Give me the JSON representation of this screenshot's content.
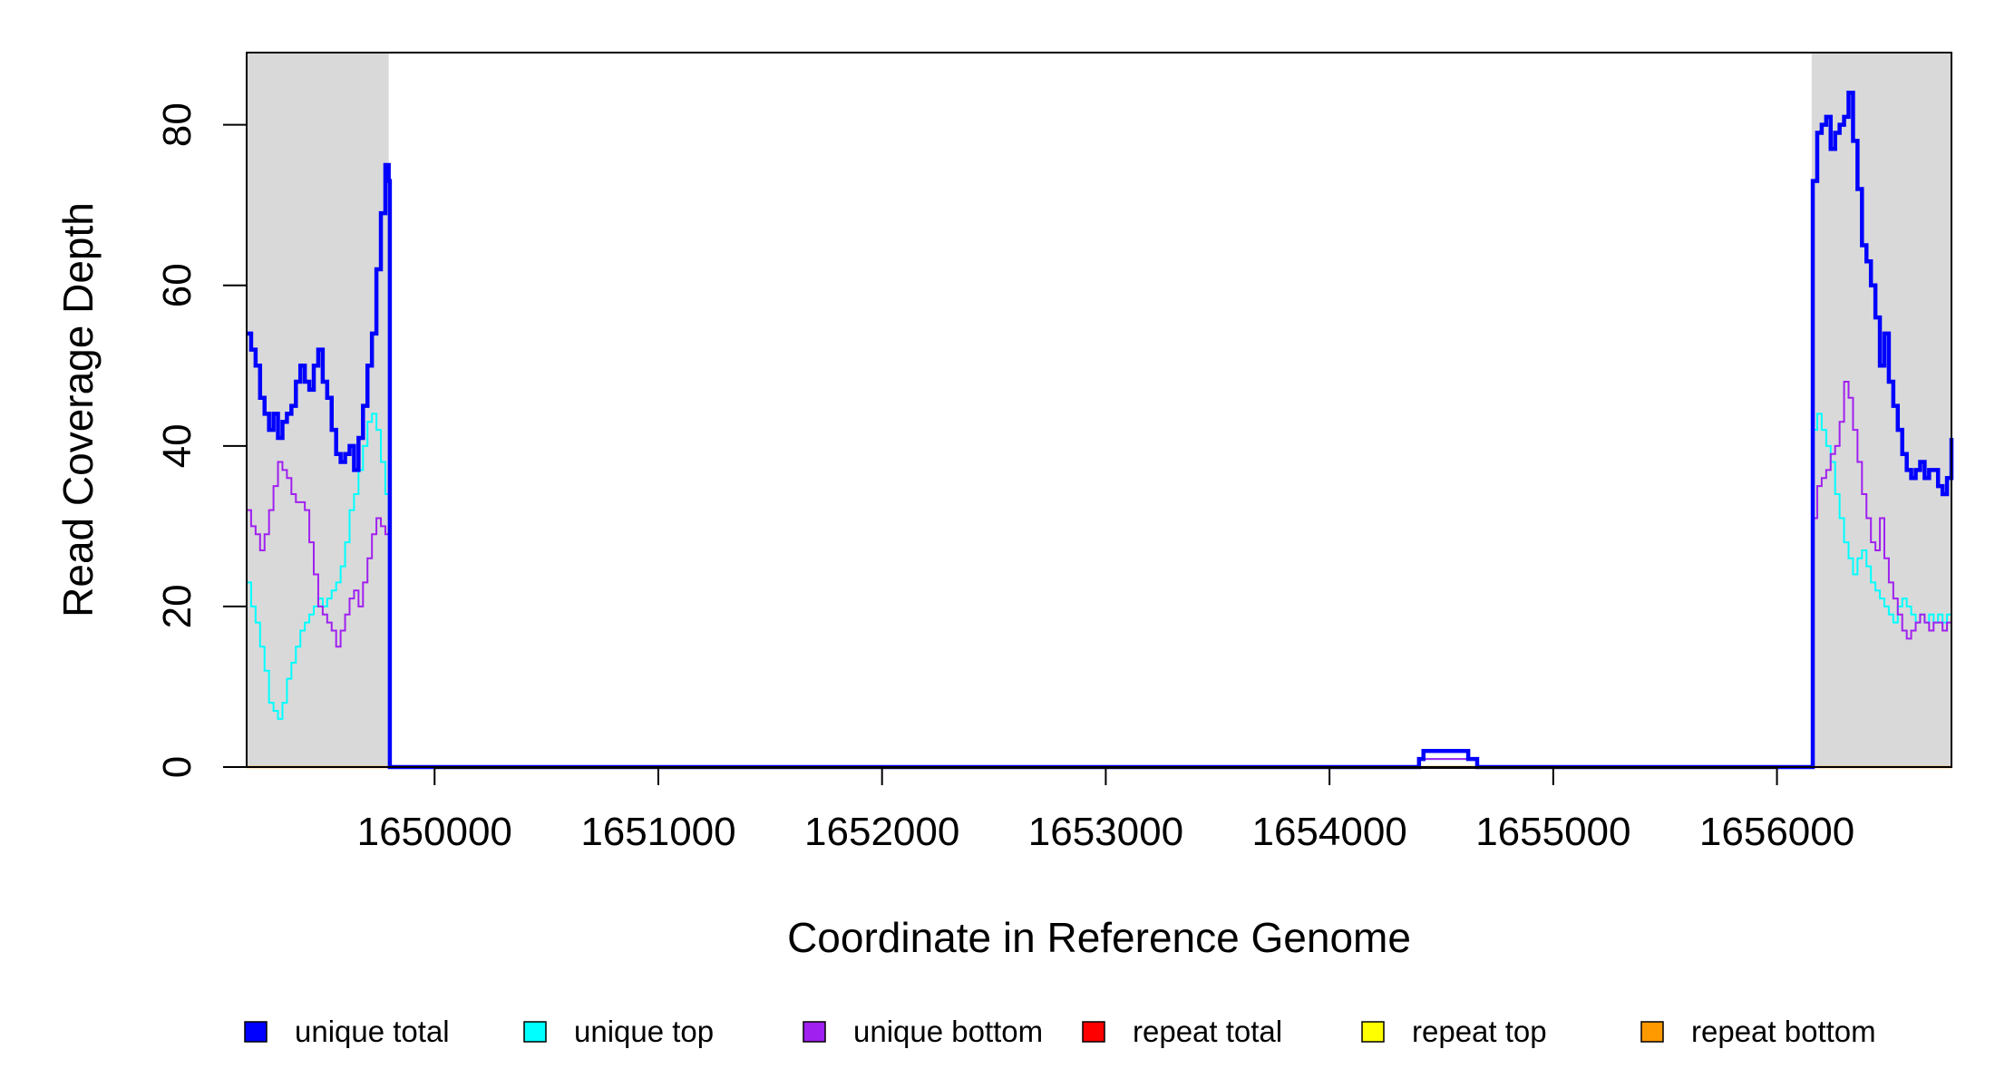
{
  "chart_data": {
    "type": "line",
    "xlabel": "Coordinate in Reference Genome",
    "ylabel": "Read Coverage Depth",
    "xlim": [
      1649160,
      1656780
    ],
    "ylim": [
      0,
      89
    ],
    "x_ticks": [
      1650000,
      1651000,
      1652000,
      1653000,
      1654000,
      1655000,
      1656000
    ],
    "x_tick_labels": [
      "1650000",
      "1651000",
      "1652000",
      "1653000",
      "1654000",
      "1655000",
      "1656000"
    ],
    "y_ticks": [
      0,
      20,
      40,
      60,
      80
    ],
    "y_tick_labels": [
      "0",
      "20",
      "40",
      "60",
      "80"
    ],
    "shaded_regions": [
      {
        "x0": 1649160,
        "x1": 1649795,
        "color": "#d9d9d9"
      },
      {
        "x0": 1656155,
        "x1": 1656780,
        "color": "#d9d9d9"
      }
    ],
    "grid": false,
    "legend_position": "bottom",
    "series": [
      {
        "name": "unique total",
        "color": "#0000ff",
        "line_width": 4.5,
        "points": [
          [
            1649160,
            54
          ],
          [
            1649180,
            52
          ],
          [
            1649200,
            50
          ],
          [
            1649220,
            46
          ],
          [
            1649240,
            44
          ],
          [
            1649260,
            42
          ],
          [
            1649280,
            44
          ],
          [
            1649300,
            41
          ],
          [
            1649320,
            43
          ],
          [
            1649340,
            44
          ],
          [
            1649360,
            45
          ],
          [
            1649380,
            48
          ],
          [
            1649400,
            50
          ],
          [
            1649420,
            48
          ],
          [
            1649440,
            47
          ],
          [
            1649460,
            50
          ],
          [
            1649480,
            52
          ],
          [
            1649500,
            48
          ],
          [
            1649520,
            46
          ],
          [
            1649540,
            42
          ],
          [
            1649560,
            39
          ],
          [
            1649580,
            38
          ],
          [
            1649600,
            39
          ],
          [
            1649620,
            40
          ],
          [
            1649640,
            37
          ],
          [
            1649660,
            41
          ],
          [
            1649680,
            45
          ],
          [
            1649700,
            50
          ],
          [
            1649720,
            54
          ],
          [
            1649740,
            62
          ],
          [
            1649760,
            69
          ],
          [
            1649780,
            75
          ],
          [
            1649795,
            73
          ],
          [
            1649800,
            0
          ],
          [
            1654380,
            0
          ],
          [
            1654400,
            1
          ],
          [
            1654420,
            2
          ],
          [
            1654620,
            1
          ],
          [
            1654660,
            0
          ],
          [
            1656150,
            0
          ],
          [
            1656160,
            73
          ],
          [
            1656180,
            79
          ],
          [
            1656200,
            80
          ],
          [
            1656220,
            81
          ],
          [
            1656240,
            77
          ],
          [
            1656260,
            79
          ],
          [
            1656280,
            80
          ],
          [
            1656300,
            81
          ],
          [
            1656320,
            84
          ],
          [
            1656340,
            78
          ],
          [
            1656360,
            72
          ],
          [
            1656380,
            65
          ],
          [
            1656400,
            63
          ],
          [
            1656420,
            60
          ],
          [
            1656440,
            56
          ],
          [
            1656460,
            50
          ],
          [
            1656480,
            54
          ],
          [
            1656500,
            48
          ],
          [
            1656520,
            45
          ],
          [
            1656540,
            42
          ],
          [
            1656560,
            39
          ],
          [
            1656580,
            37
          ],
          [
            1656600,
            36
          ],
          [
            1656620,
            37
          ],
          [
            1656640,
            38
          ],
          [
            1656660,
            36
          ],
          [
            1656680,
            37
          ],
          [
            1656700,
            37
          ],
          [
            1656720,
            35
          ],
          [
            1656740,
            34
          ],
          [
            1656760,
            36
          ],
          [
            1656780,
            41
          ]
        ]
      },
      {
        "name": "unique top",
        "color": "#00ffff",
        "line_width": 2,
        "points": [
          [
            1649160,
            23
          ],
          [
            1649180,
            20
          ],
          [
            1649200,
            18
          ],
          [
            1649220,
            15
          ],
          [
            1649240,
            12
          ],
          [
            1649260,
            8
          ],
          [
            1649280,
            7
          ],
          [
            1649300,
            6
          ],
          [
            1649320,
            8
          ],
          [
            1649340,
            11
          ],
          [
            1649360,
            13
          ],
          [
            1649380,
            15
          ],
          [
            1649400,
            17
          ],
          [
            1649420,
            18
          ],
          [
            1649440,
            19
          ],
          [
            1649460,
            20
          ],
          [
            1649480,
            21
          ],
          [
            1649500,
            20
          ],
          [
            1649520,
            21
          ],
          [
            1649540,
            22
          ],
          [
            1649560,
            23
          ],
          [
            1649580,
            25
          ],
          [
            1649600,
            28
          ],
          [
            1649620,
            32
          ],
          [
            1649640,
            34
          ],
          [
            1649660,
            37
          ],
          [
            1649680,
            40
          ],
          [
            1649700,
            43
          ],
          [
            1649720,
            44
          ],
          [
            1649740,
            42
          ],
          [
            1649760,
            38
          ],
          [
            1649780,
            34
          ],
          [
            1649795,
            31
          ],
          [
            1649800,
            0
          ],
          [
            1654380,
            0
          ],
          [
            1654400,
            1
          ],
          [
            1654620,
            1
          ],
          [
            1654660,
            0
          ],
          [
            1656150,
            0
          ],
          [
            1656160,
            42
          ],
          [
            1656180,
            44
          ],
          [
            1656200,
            42
          ],
          [
            1656220,
            40
          ],
          [
            1656240,
            38
          ],
          [
            1656260,
            34
          ],
          [
            1656280,
            31
          ],
          [
            1656300,
            28
          ],
          [
            1656320,
            26
          ],
          [
            1656340,
            24
          ],
          [
            1656360,
            26
          ],
          [
            1656380,
            27
          ],
          [
            1656400,
            25
          ],
          [
            1656420,
            23
          ],
          [
            1656440,
            22
          ],
          [
            1656460,
            21
          ],
          [
            1656480,
            20
          ],
          [
            1656500,
            19
          ],
          [
            1656520,
            18
          ],
          [
            1656540,
            20
          ],
          [
            1656560,
            21
          ],
          [
            1656580,
            20
          ],
          [
            1656600,
            19
          ],
          [
            1656620,
            18
          ],
          [
            1656640,
            19
          ],
          [
            1656660,
            18
          ],
          [
            1656680,
            19
          ],
          [
            1656700,
            18
          ],
          [
            1656720,
            19
          ],
          [
            1656740,
            18
          ],
          [
            1656760,
            19
          ],
          [
            1656780,
            21
          ]
        ]
      },
      {
        "name": "unique bottom",
        "color": "#a020f0",
        "line_width": 2,
        "points": [
          [
            1649160,
            32
          ],
          [
            1649180,
            30
          ],
          [
            1649200,
            29
          ],
          [
            1649220,
            27
          ],
          [
            1649240,
            29
          ],
          [
            1649260,
            32
          ],
          [
            1649280,
            35
          ],
          [
            1649300,
            38
          ],
          [
            1649320,
            37
          ],
          [
            1649340,
            36
          ],
          [
            1649360,
            34
          ],
          [
            1649380,
            33
          ],
          [
            1649400,
            33
          ],
          [
            1649420,
            32
          ],
          [
            1649440,
            28
          ],
          [
            1649460,
            24
          ],
          [
            1649480,
            20
          ],
          [
            1649500,
            19
          ],
          [
            1649520,
            18
          ],
          [
            1649540,
            17
          ],
          [
            1649560,
            15
          ],
          [
            1649580,
            17
          ],
          [
            1649600,
            19
          ],
          [
            1649620,
            21
          ],
          [
            1649640,
            22
          ],
          [
            1649660,
            20
          ],
          [
            1649680,
            23
          ],
          [
            1649700,
            26
          ],
          [
            1649720,
            29
          ],
          [
            1649740,
            31
          ],
          [
            1649760,
            30
          ],
          [
            1649780,
            29
          ],
          [
            1649795,
            30
          ],
          [
            1649800,
            0
          ],
          [
            1654380,
            0
          ],
          [
            1654400,
            1
          ],
          [
            1654620,
            1
          ],
          [
            1654660,
            0
          ],
          [
            1656150,
            0
          ],
          [
            1656160,
            31
          ],
          [
            1656180,
            35
          ],
          [
            1656200,
            36
          ],
          [
            1656220,
            37
          ],
          [
            1656240,
            39
          ],
          [
            1656260,
            40
          ],
          [
            1656280,
            43
          ],
          [
            1656300,
            48
          ],
          [
            1656320,
            46
          ],
          [
            1656340,
            42
          ],
          [
            1656360,
            38
          ],
          [
            1656380,
            34
          ],
          [
            1656400,
            31
          ],
          [
            1656420,
            28
          ],
          [
            1656440,
            27
          ],
          [
            1656460,
            31
          ],
          [
            1656480,
            26
          ],
          [
            1656500,
            23
          ],
          [
            1656520,
            21
          ],
          [
            1656540,
            19
          ],
          [
            1656560,
            17
          ],
          [
            1656580,
            16
          ],
          [
            1656600,
            17
          ],
          [
            1656620,
            18
          ],
          [
            1656640,
            19
          ],
          [
            1656660,
            18
          ],
          [
            1656680,
            17
          ],
          [
            1656700,
            18
          ],
          [
            1656720,
            18
          ],
          [
            1656740,
            17
          ],
          [
            1656760,
            18
          ],
          [
            1656780,
            19
          ]
        ]
      },
      {
        "name": "repeat total",
        "color": "#ff0000",
        "line_width": 2,
        "points": [
          [
            1649160,
            0
          ],
          [
            1656780,
            0
          ]
        ]
      },
      {
        "name": "repeat top",
        "color": "#ffff00",
        "line_width": 2,
        "points": [
          [
            1649160,
            0
          ],
          [
            1656780,
            0
          ]
        ]
      },
      {
        "name": "repeat bottom",
        "color": "#ff9900",
        "line_width": 2.5,
        "points": [
          [
            1649160,
            0
          ],
          [
            1656780,
            0
          ]
        ]
      }
    ],
    "legend": [
      {
        "label": "unique total",
        "color": "#0000ff"
      },
      {
        "label": "unique top",
        "color": "#00ffff"
      },
      {
        "label": "unique bottom",
        "color": "#a020f0"
      },
      {
        "label": "repeat total",
        "color": "#ff0000"
      },
      {
        "label": "repeat top",
        "color": "#ffff00"
      },
      {
        "label": "repeat bottom",
        "color": "#ff9900"
      }
    ]
  }
}
